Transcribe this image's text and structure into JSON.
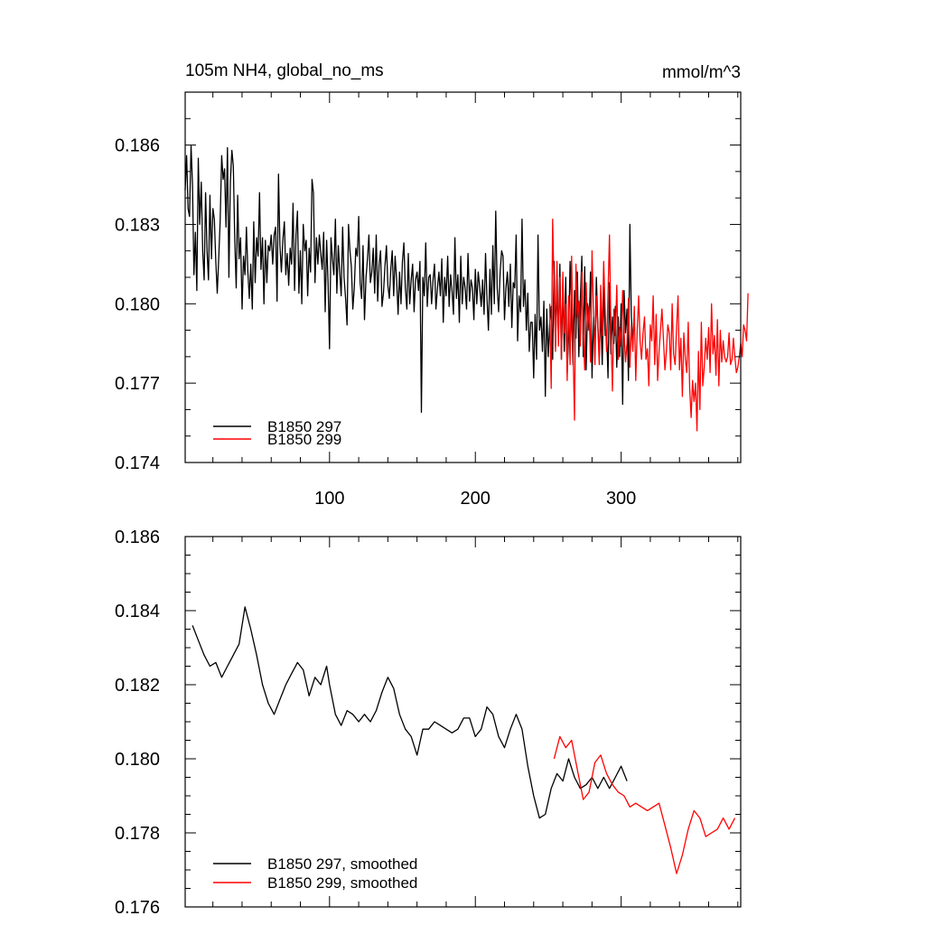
{
  "figure": {
    "title_left": "105m NH4, global_no_ms",
    "title_right": "mmol/m^3"
  },
  "chart_data": [
    {
      "type": "line",
      "panel": "top",
      "xlim": [
        1,
        382
      ],
      "ylim": [
        0.174,
        0.188
      ],
      "x_ticks": [
        100,
        200,
        300
      ],
      "x_tick_labels": [
        "100",
        "200",
        "300"
      ],
      "y_ticks": [
        0.174,
        0.177,
        0.18,
        0.183,
        0.186
      ],
      "y_tick_labels": [
        "0.174",
        "0.177",
        "0.180",
        "0.183",
        "0.186"
      ],
      "legend_position": "bottom-left",
      "series": [
        {
          "name": "B1850 297",
          "color": "#000000",
          "x_start": 1,
          "values": [
            0.1843,
            0.1856,
            0.1836,
            0.1833,
            0.186,
            0.1845,
            0.1811,
            0.1827,
            0.1805,
            0.1855,
            0.183,
            0.1846,
            0.182,
            0.1809,
            0.1842,
            0.182,
            0.1809,
            0.1841,
            0.1817,
            0.1836,
            0.1832,
            0.1816,
            0.1804,
            0.1817,
            0.1831,
            0.1856,
            0.1847,
            0.1851,
            0.1829,
            0.1859,
            0.181,
            0.1846,
            0.1858,
            0.1852,
            0.1824,
            0.1806,
            0.1841,
            0.1817,
            0.1825,
            0.1798,
            0.1818,
            0.1811,
            0.1829,
            0.1812,
            0.1802,
            0.1815,
            0.1798,
            0.1831,
            0.1808,
            0.1825,
            0.1818,
            0.1842,
            0.1813,
            0.1825,
            0.18,
            0.1824,
            0.1808,
            0.1822,
            0.182,
            0.1826,
            0.1815,
            0.1826,
            0.1829,
            0.1801,
            0.1849,
            0.1822,
            0.1812,
            0.1824,
            0.1831,
            0.1811,
            0.1819,
            0.1807,
            0.1821,
            0.1815,
            0.1838,
            0.1805,
            0.1826,
            0.1835,
            0.1804,
            0.182,
            0.18,
            0.183,
            0.182,
            0.1824,
            0.1803,
            0.1821,
            0.1812,
            0.1847,
            0.1842,
            0.1808,
            0.1825,
            0.1815,
            0.1826,
            0.1819,
            0.1813,
            0.1827,
            0.1797,
            0.1824,
            0.1808,
            0.1783,
            0.1825,
            0.1817,
            0.1811,
            0.1832,
            0.1804,
            0.1822,
            0.1812,
            0.1803,
            0.1829,
            0.181,
            0.1802,
            0.1792,
            0.183,
            0.182,
            0.1814,
            0.1798,
            0.1806,
            0.1821,
            0.1818,
            0.1833,
            0.1808,
            0.1802,
            0.1822,
            0.1794,
            0.181,
            0.1817,
            0.1826,
            0.1808,
            0.1812,
            0.1821,
            0.1804,
            0.1826,
            0.1801,
            0.1815,
            0.182,
            0.1799,
            0.1804,
            0.1814,
            0.1822,
            0.1807,
            0.1802,
            0.1813,
            0.182,
            0.1803,
            0.1818,
            0.1809,
            0.1796,
            0.1812,
            0.18,
            0.1816,
            0.1823,
            0.1806,
            0.1798,
            0.1819,
            0.18,
            0.1809,
            0.1815,
            0.1797,
            0.1809,
            0.1812,
            0.1805,
            0.1816,
            0.1759,
            0.181,
            0.1803,
            0.1823,
            0.1799,
            0.181,
            0.1811,
            0.18,
            0.1809,
            0.1815,
            0.1798,
            0.1806,
            0.1812,
            0.1803,
            0.1817,
            0.1793,
            0.181,
            0.1803,
            0.1818,
            0.1799,
            0.1811,
            0.1805,
            0.1796,
            0.1825,
            0.1802,
            0.1811,
            0.1793,
            0.1818,
            0.18,
            0.181,
            0.1806,
            0.1798,
            0.1819,
            0.1801,
            0.1809,
            0.1806,
            0.1794,
            0.1813,
            0.18,
            0.1812,
            0.1806,
            0.1799,
            0.1809,
            0.1796,
            0.1819,
            0.1802,
            0.179,
            0.1813,
            0.1796,
            0.1822,
            0.18,
            0.1835,
            0.1806,
            0.1797,
            0.1812,
            0.182,
            0.1818,
            0.1794,
            0.1806,
            0.1812,
            0.1799,
            0.1815,
            0.1791,
            0.1808,
            0.1806,
            0.1826,
            0.1786,
            0.1803,
            0.1797,
            0.1832,
            0.1799,
            0.1809,
            0.179,
            0.1804,
            0.1782,
            0.1793,
            0.1793,
            0.1772,
            0.1796,
            0.1779,
            0.1826,
            0.179,
            0.1795,
            0.1782,
            0.1801,
            0.1765,
            0.1798,
            0.178,
            0.1792,
            0.1799,
            0.1779,
            0.1816,
            0.1784,
            0.1807,
            0.1788,
            0.1815,
            0.1779,
            0.1807,
            0.1782,
            0.181,
            0.1774,
            0.1788,
            0.1816,
            0.1794,
            0.1777,
            0.1805,
            0.1787,
            0.1812,
            0.178,
            0.1801,
            0.1818,
            0.178,
            0.1814,
            0.1775,
            0.18,
            0.179,
            0.1812,
            0.1772,
            0.1795,
            0.1784,
            0.181,
            0.1792,
            0.178,
            0.1798,
            0.1777,
            0.1806,
            0.1788,
            0.179,
            0.1772,
            0.1808,
            0.1781,
            0.1795,
            0.1785,
            0.1799,
            0.1776,
            0.1795,
            0.178,
            0.18,
            0.1762,
            0.1805,
            0.1789,
            0.1798,
            0.1771,
            0.183,
            0.1795,
            0.1787
          ]
        },
        {
          "name": "B1850 299",
          "color": "#ff0000",
          "x_start": 251,
          "values": [
            0.18,
            0.1768,
            0.1832,
            0.1805,
            0.1782,
            0.1816,
            0.1784,
            0.181,
            0.1779,
            0.1812,
            0.1789,
            0.18,
            0.1771,
            0.1803,
            0.1777,
            0.1818,
            0.1783,
            0.1756,
            0.1815,
            0.1795,
            0.1801,
            0.1784,
            0.1812,
            0.1789,
            0.1775,
            0.1808,
            0.179,
            0.1799,
            0.1778,
            0.182,
            0.1796,
            0.1777,
            0.1803,
            0.1791,
            0.1777,
            0.1807,
            0.1788,
            0.1816,
            0.1798,
            0.1782,
            0.1804,
            0.1826,
            0.179,
            0.1767,
            0.1798,
            0.1788,
            0.1807,
            0.1779,
            0.1791,
            0.1784,
            0.1805,
            0.1789,
            0.1778,
            0.1785,
            0.1802,
            0.1776,
            0.1792,
            0.1782,
            0.1799,
            0.1771,
            0.179,
            0.1803,
            0.1786,
            0.1779,
            0.1789,
            0.1795,
            0.1779,
            0.1783,
            0.1769,
            0.1792,
            0.1786,
            0.1803,
            0.1777,
            0.1796,
            0.1771,
            0.1782,
            0.179,
            0.1798,
            0.1787,
            0.1775,
            0.1782,
            0.1792,
            0.1789,
            0.1775,
            0.18,
            0.1781,
            0.1777,
            0.1791,
            0.1803,
            0.1775,
            0.1787,
            0.1765,
            0.1789,
            0.1779,
            0.1774,
            0.1793,
            0.1768,
            0.1757,
            0.1771,
            0.1763,
            0.177,
            0.1752,
            0.1782,
            0.176,
            0.1793,
            0.1769,
            0.1776,
            0.1787,
            0.1779,
            0.1791,
            0.1774,
            0.18,
            0.1781,
            0.1788,
            0.1773,
            0.1794,
            0.1769,
            0.179,
            0.1778,
            0.1786,
            0.178,
            0.1778,
            0.178,
            0.1789,
            0.1777,
            0.1779,
            0.1787,
            0.178,
            0.1774,
            0.1776,
            0.178,
            0.1785,
            0.178,
            0.1792,
            0.179,
            0.1786,
            0.1804
          ]
        }
      ]
    },
    {
      "type": "line",
      "panel": "bottom",
      "xlim": [
        1,
        382
      ],
      "ylim": [
        0.176,
        0.186
      ],
      "x_ticks": [
        100,
        200,
        300
      ],
      "x_tick_labels": [],
      "y_ticks": [
        0.176,
        0.178,
        0.18,
        0.182,
        0.184,
        0.186
      ],
      "y_tick_labels": [
        "0.176",
        "0.178",
        "0.180",
        "0.182",
        "0.184",
        "0.186"
      ],
      "legend_position": "bottom-left",
      "series": [
        {
          "name": "B1850 297, smoothed",
          "color": "#000000",
          "x": [
            6,
            10,
            14,
            18,
            22,
            26,
            30,
            34,
            38,
            42,
            46,
            50,
            54,
            58,
            62,
            66,
            70,
            74,
            78,
            82,
            86,
            90,
            94,
            98,
            100,
            104,
            108,
            112,
            116,
            120,
            124,
            128,
            132,
            136,
            140,
            144,
            148,
            152,
            156,
            160,
            164,
            168,
            172,
            176,
            180,
            184,
            188,
            192,
            196,
            200,
            204,
            208,
            212,
            216,
            220,
            224,
            228,
            232,
            236,
            240,
            244,
            248,
            252,
            256,
            260,
            264,
            268,
            272,
            276,
            280,
            284,
            288,
            292,
            296,
            300,
            304
          ],
          "values": [
            0.1836,
            0.1832,
            0.1828,
            0.1825,
            0.1826,
            0.1822,
            0.1825,
            0.1828,
            0.1831,
            0.1841,
            0.1835,
            0.1828,
            0.182,
            0.1815,
            0.1812,
            0.1816,
            0.182,
            0.1823,
            0.1826,
            0.1824,
            0.1817,
            0.1822,
            0.182,
            0.1825,
            0.182,
            0.1812,
            0.1809,
            0.1813,
            0.1812,
            0.181,
            0.1812,
            0.181,
            0.1813,
            0.1818,
            0.1822,
            0.1819,
            0.1812,
            0.1808,
            0.1806,
            0.1801,
            0.1808,
            0.1808,
            0.181,
            0.1809,
            0.1808,
            0.1807,
            0.1808,
            0.1811,
            0.1811,
            0.1806,
            0.1808,
            0.1814,
            0.1812,
            0.1806,
            0.1803,
            0.1808,
            0.1812,
            0.1808,
            0.1798,
            0.179,
            0.1784,
            0.1785,
            0.1792,
            0.1796,
            0.1794,
            0.18,
            0.1795,
            0.1792,
            0.1793,
            0.1795,
            0.1792,
            0.1795,
            0.1792,
            0.1795,
            0.1798,
            0.1794
          ]
        },
        {
          "name": "B1850 299, smoothed",
          "color": "#ff0000",
          "x": [
            254,
            258,
            262,
            266,
            270,
            274,
            278,
            282,
            286,
            290,
            294,
            298,
            302,
            306,
            310,
            314,
            318,
            322,
            326,
            330,
            334,
            338,
            342,
            346,
            350,
            354,
            358,
            362,
            366,
            370,
            374,
            378
          ],
          "values": [
            0.18,
            0.1806,
            0.1803,
            0.1805,
            0.1797,
            0.1789,
            0.1791,
            0.1799,
            0.1801,
            0.1796,
            0.1793,
            0.1791,
            0.179,
            0.1787,
            0.1788,
            0.1787,
            0.1786,
            0.1787,
            0.1788,
            0.1782,
            0.1776,
            0.1769,
            0.1774,
            0.1781,
            0.1786,
            0.1784,
            0.1779,
            0.178,
            0.1781,
            0.1784,
            0.1781,
            0.1784
          ]
        }
      ]
    }
  ]
}
